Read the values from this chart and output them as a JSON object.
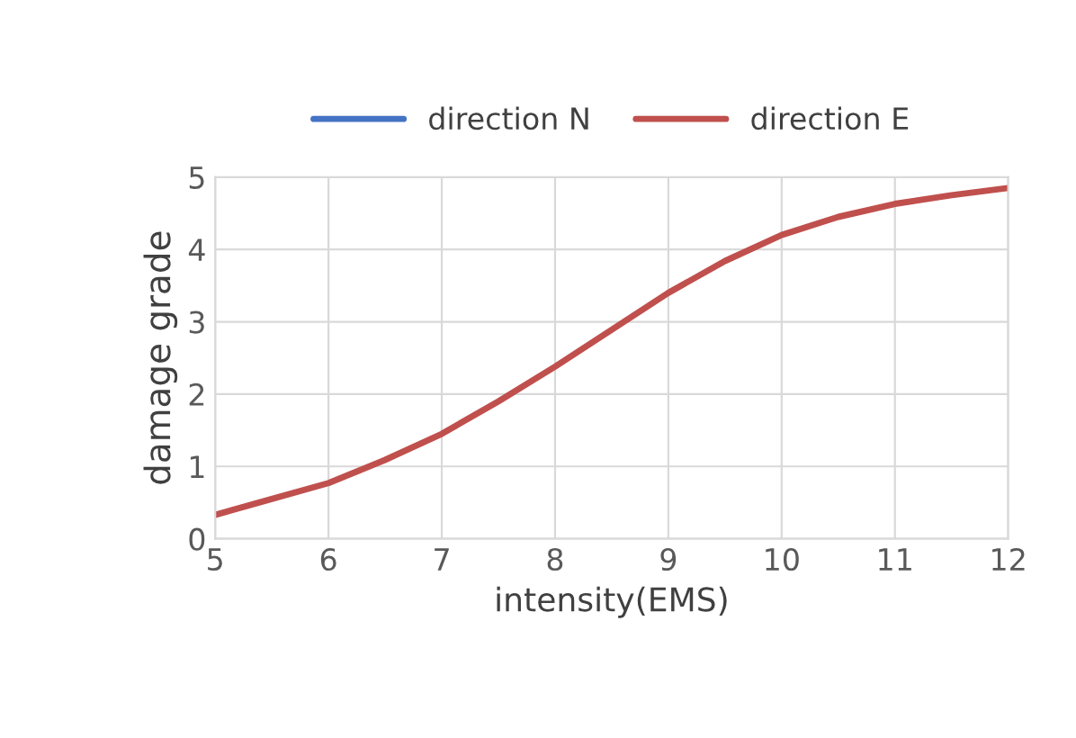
{
  "chart_data": {
    "type": "line",
    "xlabel": "intensity(EMS)",
    "ylabel": "damage grade",
    "x": [
      5,
      5.5,
      6,
      6.5,
      7,
      7.5,
      8,
      8.5,
      9,
      9.5,
      10,
      10.5,
      11,
      11.5,
      12
    ],
    "series": [
      {
        "name": "direction N",
        "color": "#4472c4",
        "values": [
          null,
          null,
          null,
          null,
          null,
          null,
          null,
          null,
          null,
          null,
          null,
          null,
          null,
          null,
          null
        ]
      },
      {
        "name": "direction E",
        "color": "#c0504d",
        "values": [
          0.33,
          0.55,
          0.77,
          1.09,
          1.45,
          1.9,
          2.38,
          2.89,
          3.4,
          3.84,
          4.2,
          4.45,
          4.63,
          4.75,
          4.85
        ]
      }
    ],
    "xlim": [
      5,
      12
    ],
    "xticks": [
      5,
      6,
      7,
      8,
      9,
      10,
      11,
      12
    ],
    "ylim": [
      0,
      5
    ],
    "yticks": [
      0,
      1,
      2,
      3,
      4,
      5
    ],
    "grid": true,
    "legend": "top",
    "marker": "none",
    "line_style": "solid"
  }
}
